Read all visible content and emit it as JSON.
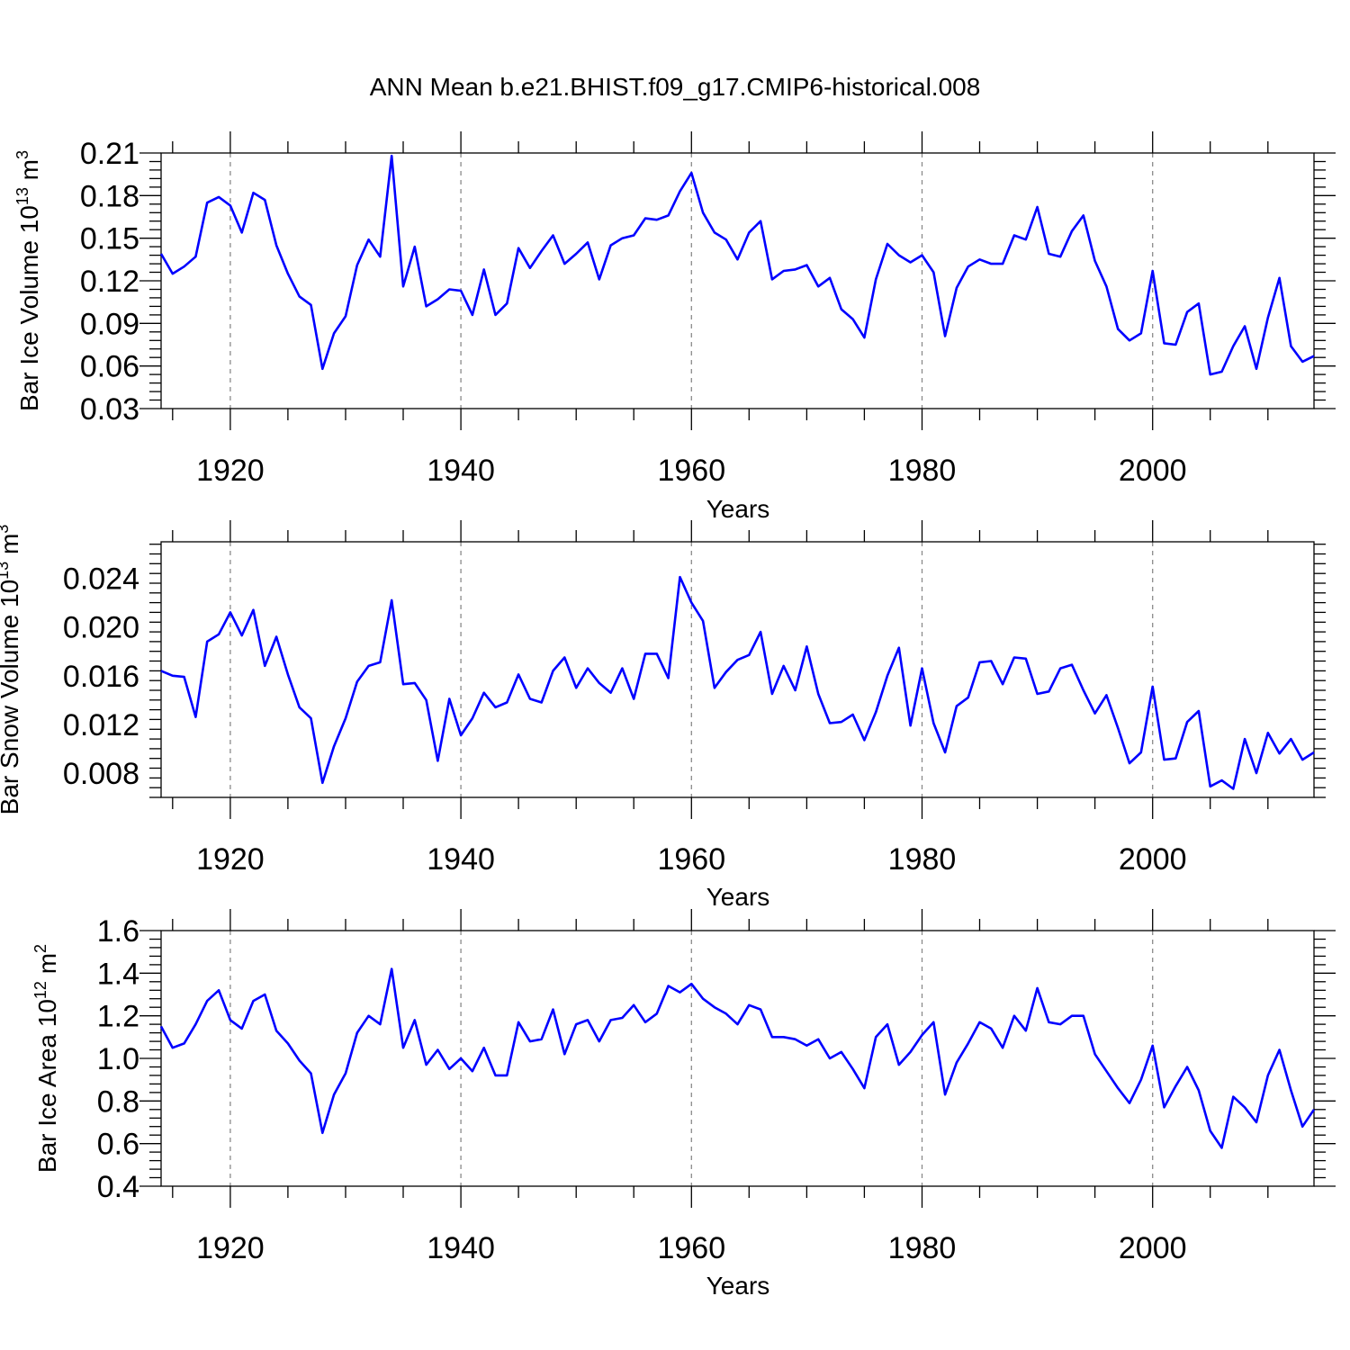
{
  "title": "ANN Mean b.e21.BHIST.f09_g17.CMIP6-historical.008",
  "colors": {
    "series": "#0000ff",
    "grid": "#8a8a8a",
    "axis": "#000000"
  },
  "chart_data": [
    {
      "type": "line",
      "ylabel": "Bar Ice Volume 10",
      "ylabel_sup": "13",
      "ylabel_unit": "m",
      "ylabel_unit_sup": "3",
      "xlabel": "Years",
      "xlim": [
        1914,
        2014
      ],
      "ylim": [
        0.03,
        0.21
      ],
      "x_ticks": [
        1920,
        1940,
        1960,
        1980,
        2000
      ],
      "x_tick_labels": [
        "1920",
        "1940",
        "1960",
        "1980",
        "2000"
      ],
      "y_ticks": [
        0.03,
        0.06,
        0.09,
        0.12,
        0.15,
        0.18,
        0.21
      ],
      "y_tick_labels": [
        "0.03",
        "0.06",
        "0.09",
        "0.12",
        "0.15",
        "0.18",
        "0.21"
      ],
      "vertical_grid": "dashed at major x ticks",
      "x_start": 1914,
      "values": [
        0.139,
        0.125,
        0.13,
        0.137,
        0.175,
        0.179,
        0.173,
        0.154,
        0.182,
        0.177,
        0.145,
        0.125,
        0.109,
        0.103,
        0.058,
        0.083,
        0.095,
        0.131,
        0.149,
        0.137,
        0.208,
        0.116,
        0.144,
        0.102,
        0.107,
        0.114,
        0.113,
        0.096,
        0.128,
        0.096,
        0.104,
        0.143,
        0.129,
        0.141,
        0.152,
        0.132,
        0.139,
        0.147,
        0.121,
        0.145,
        0.15,
        0.152,
        0.164,
        0.163,
        0.166,
        0.183,
        0.196,
        0.168,
        0.154,
        0.149,
        0.135,
        0.154,
        0.162,
        0.121,
        0.127,
        0.128,
        0.131,
        0.116,
        0.122,
        0.1,
        0.093,
        0.08,
        0.121,
        0.146,
        0.138,
        0.133,
        0.138,
        0.126,
        0.081,
        0.115,
        0.13,
        0.135,
        0.132,
        0.132,
        0.152,
        0.149,
        0.172,
        0.139,
        0.137,
        0.155,
        0.166,
        0.134,
        0.116,
        0.086,
        0.078,
        0.083,
        0.127,
        0.076,
        0.075,
        0.098,
        0.104,
        0.054,
        0.056,
        0.074,
        0.088,
        0.058,
        0.094,
        0.122,
        0.074,
        0.063,
        0.067
      ]
    },
    {
      "type": "line",
      "ylabel": "Bar Snow Volume 10",
      "ylabel_sup": "13",
      "ylabel_unit": "m",
      "ylabel_unit_sup": "3",
      "xlabel": "Years",
      "xlim": [
        1914,
        2014
      ],
      "ylim": [
        0.006,
        0.027
      ],
      "x_ticks": [
        1920,
        1940,
        1960,
        1980,
        2000
      ],
      "x_tick_labels": [
        "1920",
        "1940",
        "1960",
        "1980",
        "2000"
      ],
      "y_ticks": [
        0.008,
        0.012,
        0.016,
        0.02,
        0.024
      ],
      "y_tick_labels": [
        "0.008",
        "0.012",
        "0.016",
        "0.020",
        "0.024"
      ],
      "vertical_grid": "dashed at major x ticks",
      "x_start": 1914,
      "values": [
        0.0164,
        0.016,
        0.0159,
        0.0126,
        0.0188,
        0.0194,
        0.0212,
        0.0193,
        0.0214,
        0.0168,
        0.0192,
        0.0161,
        0.0134,
        0.0125,
        0.0072,
        0.0102,
        0.0125,
        0.0155,
        0.0168,
        0.0171,
        0.0222,
        0.0153,
        0.0154,
        0.014,
        0.009,
        0.0141,
        0.0111,
        0.0125,
        0.0146,
        0.0134,
        0.0138,
        0.0161,
        0.0141,
        0.0138,
        0.0164,
        0.0175,
        0.015,
        0.0166,
        0.0154,
        0.0146,
        0.0166,
        0.0141,
        0.0178,
        0.0178,
        0.0158,
        0.0241,
        0.022,
        0.0205,
        0.015,
        0.0163,
        0.0173,
        0.0177,
        0.0196,
        0.0145,
        0.0168,
        0.0148,
        0.0184,
        0.0145,
        0.0121,
        0.0122,
        0.0128,
        0.0107,
        0.013,
        0.016,
        0.0183,
        0.0119,
        0.0166,
        0.0121,
        0.0097,
        0.0135,
        0.0142,
        0.0171,
        0.0172,
        0.0153,
        0.0175,
        0.0174,
        0.0145,
        0.0147,
        0.0166,
        0.0169,
        0.0148,
        0.0129,
        0.0144,
        0.0117,
        0.0088,
        0.0097,
        0.0151,
        0.0091,
        0.0092,
        0.0122,
        0.0131,
        0.0069,
        0.0074,
        0.0067,
        0.0108,
        0.008,
        0.0113,
        0.0096,
        0.0108,
        0.0091,
        0.0097
      ]
    },
    {
      "type": "line",
      "ylabel": "Bar Ice Area 10",
      "ylabel_sup": "12",
      "ylabel_unit": "m",
      "ylabel_unit_sup": "2",
      "xlabel": "Years",
      "xlim": [
        1914,
        2014
      ],
      "ylim": [
        0.4,
        1.6
      ],
      "x_ticks": [
        1920,
        1940,
        1960,
        1980,
        2000
      ],
      "x_tick_labels": [
        "1920",
        "1940",
        "1960",
        "1980",
        "2000"
      ],
      "y_ticks": [
        0.4,
        0.6,
        0.8,
        1.0,
        1.2,
        1.4,
        1.6
      ],
      "y_tick_labels": [
        "0.4",
        "0.6",
        "0.8",
        "1.0",
        "1.2",
        "1.4",
        "1.6"
      ],
      "vertical_grid": "dashed at major x ticks",
      "x_start": 1914,
      "values": [
        1.15,
        1.05,
        1.07,
        1.16,
        1.27,
        1.32,
        1.18,
        1.14,
        1.27,
        1.3,
        1.13,
        1.07,
        0.99,
        0.93,
        0.65,
        0.83,
        0.93,
        1.12,
        1.2,
        1.16,
        1.42,
        1.05,
        1.18,
        0.97,
        1.04,
        0.95,
        1.0,
        0.94,
        1.05,
        0.92,
        0.92,
        1.17,
        1.08,
        1.09,
        1.23,
        1.02,
        1.16,
        1.18,
        1.08,
        1.18,
        1.19,
        1.25,
        1.17,
        1.21,
        1.34,
        1.31,
        1.35,
        1.28,
        1.24,
        1.21,
        1.16,
        1.25,
        1.23,
        1.1,
        1.1,
        1.09,
        1.06,
        1.09,
        1.0,
        1.03,
        0.95,
        0.86,
        1.1,
        1.16,
        0.97,
        1.03,
        1.11,
        1.17,
        0.83,
        0.98,
        1.07,
        1.17,
        1.14,
        1.05,
        1.2,
        1.13,
        1.33,
        1.17,
        1.16,
        1.2,
        1.2,
        1.02,
        0.94,
        0.86,
        0.79,
        0.9,
        1.06,
        0.77,
        0.87,
        0.96,
        0.85,
        0.66,
        0.58,
        0.82,
        0.77,
        0.7,
        0.92,
        1.04,
        0.85,
        0.68,
        0.76
      ]
    }
  ]
}
